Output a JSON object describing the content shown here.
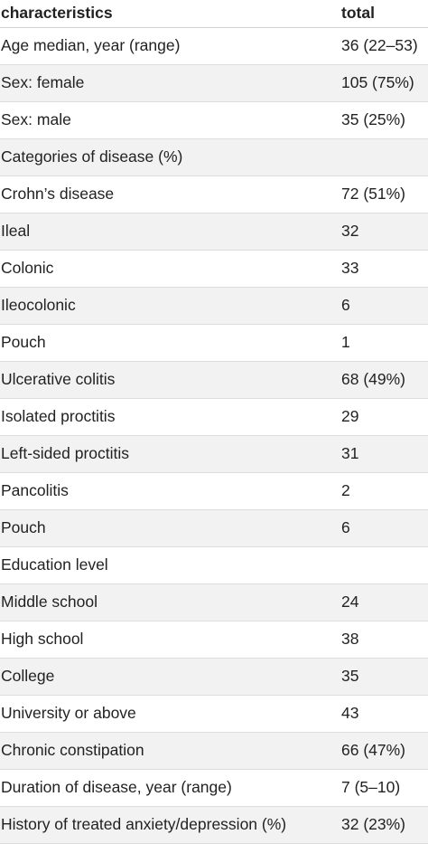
{
  "table": {
    "headers": {
      "characteristics": "characteristics",
      "total": "total"
    },
    "rows": [
      {
        "characteristic": "Age median, year (range)",
        "total": "36 (22–53)"
      },
      {
        "characteristic": "Sex: female",
        "total": "105 (75%)"
      },
      {
        "characteristic": "Sex: male",
        "total": "35 (25%)"
      },
      {
        "characteristic": "Categories of disease (%)",
        "total": ""
      },
      {
        "characteristic": "Crohn’s disease",
        "total": "72 (51%)"
      },
      {
        "characteristic": "Ileal",
        "total": "32"
      },
      {
        "characteristic": "Colonic",
        "total": "33"
      },
      {
        "characteristic": "Ileocolonic",
        "total": "6"
      },
      {
        "characteristic": "Pouch",
        "total": "1"
      },
      {
        "characteristic": "Ulcerative colitis",
        "total": "68 (49%)"
      },
      {
        "characteristic": "Isolated proctitis",
        "total": "29"
      },
      {
        "characteristic": "Left-sided proctitis",
        "total": "31"
      },
      {
        "characteristic": "Pancolitis",
        "total": "2"
      },
      {
        "characteristic": "Pouch",
        "total": "6"
      },
      {
        "characteristic": "Education level",
        "total": ""
      },
      {
        "characteristic": "Middle school",
        "total": "24"
      },
      {
        "characteristic": "High school",
        "total": "38"
      },
      {
        "characteristic": "College",
        "total": "35"
      },
      {
        "characteristic": "University or above",
        "total": "43"
      },
      {
        "characteristic": "Chronic constipation",
        "total": "66 (47%)"
      },
      {
        "characteristic": "Duration of disease, year (range)",
        "total": "7 (5–10)"
      },
      {
        "characteristic": "History of treated anxiety/depression (%)",
        "total": "32 (23%)"
      }
    ]
  }
}
